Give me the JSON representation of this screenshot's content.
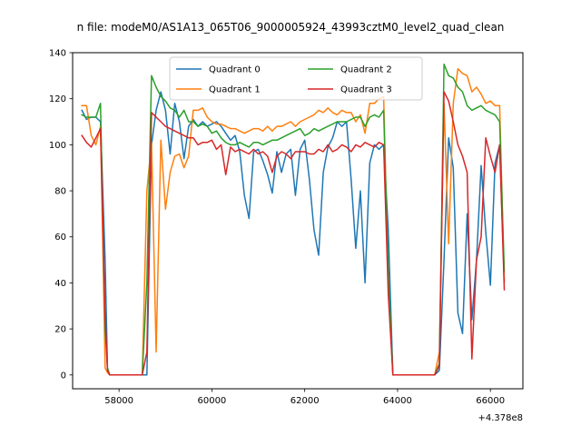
{
  "chart_data": {
    "type": "line",
    "title": "n file: modeM0/AS1A13_065T06_9000005924_43993cztM0_level2_quad_clean",
    "xlabel": "",
    "ylabel": "",
    "x_offset_label": "+4.378e8",
    "xlim": [
      57000,
      66700
    ],
    "ylim": [
      -6,
      140
    ],
    "xticks": [
      58000,
      60000,
      62000,
      64000,
      66000
    ],
    "xtick_labels": [
      "58000",
      "60000",
      "62000",
      "64000",
      "66000"
    ],
    "yticks": [
      0,
      20,
      40,
      60,
      80,
      100,
      120,
      140
    ],
    "ytick_labels": [
      "0",
      "20",
      "40",
      "60",
      "80",
      "100",
      "120",
      "140"
    ],
    "grid": false,
    "legend_position": "top-center",
    "legend_columns": 2,
    "series": [
      {
        "name": "Quadrant 0",
        "color": "#1f77b4",
        "x": [
          57200,
          57300,
          57400,
          57500,
          57600,
          57700,
          57750,
          57800,
          57900,
          58000,
          58100,
          58200,
          58300,
          58400,
          58500,
          58600,
          58700,
          58800,
          58900,
          59000,
          59100,
          59200,
          59300,
          59400,
          59500,
          59600,
          59700,
          59800,
          59900,
          60000,
          60100,
          60200,
          60300,
          60400,
          60500,
          60600,
          60700,
          60800,
          60900,
          61000,
          61100,
          61200,
          61300,
          61400,
          61500,
          61600,
          61700,
          61800,
          61900,
          62000,
          62100,
          62200,
          62300,
          62400,
          62500,
          62600,
          62700,
          62800,
          62900,
          63000,
          63100,
          63200,
          63300,
          63400,
          63500,
          63600,
          63700,
          63800,
          63900,
          64000,
          64100,
          64200,
          64300,
          64400,
          64500,
          64600,
          64700,
          64800,
          64900,
          65000,
          65100,
          65200,
          65300,
          65400,
          65500,
          65600,
          65700,
          65800,
          65900,
          66000,
          66100,
          66200,
          66300
        ],
        "y": [
          115,
          111,
          112,
          112,
          110,
          50,
          3,
          0,
          0,
          0,
          0,
          0,
          0,
          0,
          0,
          0,
          100,
          115,
          123,
          115,
          96,
          118,
          110,
          94,
          108,
          111,
          108,
          110,
          108,
          109,
          110,
          108,
          105,
          102,
          104,
          97,
          78,
          68,
          97,
          98,
          93,
          87,
          79,
          97,
          88,
          96,
          98,
          78,
          98,
          102,
          85,
          63,
          52,
          88,
          99,
          103,
          110,
          108,
          110,
          85,
          55,
          80,
          40,
          92,
          100,
          98,
          100,
          63,
          0,
          0,
          0,
          0,
          0,
          0,
          0,
          0,
          0,
          0,
          2,
          50,
          103,
          90,
          27,
          18,
          70,
          24,
          50,
          91,
          62,
          39,
          92,
          100,
          41
        ],
        "approximate": true
      },
      {
        "name": "Quadrant 1",
        "color": "#ff7f0e",
        "x": [
          57200,
          57300,
          57400,
          57500,
          57600,
          57700,
          57750,
          57800,
          57900,
          58000,
          58100,
          58200,
          58300,
          58400,
          58500,
          58600,
          58700,
          58800,
          58900,
          59000,
          59100,
          59200,
          59300,
          59400,
          59500,
          59600,
          59700,
          59800,
          59900,
          60000,
          60100,
          60200,
          60300,
          60400,
          60500,
          60600,
          60700,
          60800,
          60900,
          61000,
          61100,
          61200,
          61300,
          61400,
          61500,
          61600,
          61700,
          61800,
          61900,
          62000,
          62100,
          62200,
          62300,
          62400,
          62500,
          62600,
          62700,
          62800,
          62900,
          63000,
          63100,
          63200,
          63300,
          63400,
          63500,
          63600,
          63700,
          63800,
          63900,
          64000,
          64100,
          64200,
          64300,
          64400,
          64500,
          64600,
          64700,
          64800,
          64900,
          65000,
          65100,
          65200,
          65300,
          65400,
          65500,
          65600,
          65700,
          65800,
          65900,
          66000,
          66100,
          66200,
          66300
        ],
        "y": [
          117,
          117,
          104,
          100,
          108,
          3,
          1,
          0,
          0,
          0,
          0,
          0,
          0,
          0,
          0,
          80,
          101,
          10,
          102,
          72,
          88,
          95,
          96,
          90,
          95,
          115,
          115,
          116,
          112,
          110,
          109,
          109,
          108,
          107,
          107,
          106,
          105,
          106,
          107,
          107,
          106,
          108,
          106,
          108,
          108,
          109,
          110,
          108,
          110,
          111,
          112,
          113,
          115,
          114,
          116,
          114,
          113,
          115,
          114,
          114,
          110,
          113,
          105,
          118,
          118,
          120,
          121,
          40,
          0,
          0,
          0,
          0,
          0,
          0,
          0,
          0,
          0,
          0,
          10,
          118,
          57,
          118,
          133,
          131,
          130,
          123,
          125,
          122,
          118,
          119,
          117,
          117,
          40
        ],
        "approximate": true
      },
      {
        "name": "Quadrant 2",
        "color": "#2ca02c",
        "x": [
          57200,
          57300,
          57400,
          57500,
          57600,
          57700,
          57750,
          57800,
          57900,
          58000,
          58100,
          58200,
          58300,
          58400,
          58500,
          58600,
          58700,
          58800,
          58900,
          59000,
          59100,
          59200,
          59300,
          59400,
          59500,
          59600,
          59700,
          59800,
          59900,
          60000,
          60100,
          60200,
          60300,
          60400,
          60500,
          60600,
          60700,
          60800,
          60900,
          61000,
          61100,
          61200,
          61300,
          61400,
          61500,
          61600,
          61700,
          61800,
          61900,
          62000,
          62100,
          62200,
          62300,
          62400,
          62500,
          62600,
          62700,
          62800,
          62900,
          63000,
          63100,
          63200,
          63300,
          63400,
          63500,
          63600,
          63700,
          63800,
          63900,
          64000,
          64100,
          64200,
          64300,
          64400,
          64500,
          64600,
          64700,
          64800,
          64900,
          65000,
          65100,
          65200,
          65300,
          65400,
          65500,
          65600,
          65700,
          65800,
          65900,
          66000,
          66100,
          66200,
          66300
        ],
        "y": [
          113,
          112,
          112,
          112,
          118,
          20,
          3,
          0,
          0,
          0,
          0,
          0,
          0,
          0,
          0,
          40,
          130,
          125,
          121,
          119,
          116,
          115,
          112,
          115,
          110,
          110,
          108,
          109,
          108,
          105,
          106,
          103,
          101,
          100,
          100,
          101,
          100,
          99,
          101,
          101,
          100,
          101,
          102,
          102,
          103,
          104,
          105,
          106,
          107,
          104,
          105,
          107,
          106,
          107,
          108,
          109,
          110,
          110,
          110,
          111,
          112,
          112,
          108,
          112,
          113,
          112,
          115,
          45,
          0,
          0,
          0,
          0,
          0,
          0,
          0,
          0,
          0,
          0,
          5,
          135,
          130,
          129,
          125,
          123,
          117,
          115,
          116,
          117,
          115,
          114,
          113,
          110,
          45
        ],
        "approximate": true
      },
      {
        "name": "Quadrant 3",
        "color": "#d62728",
        "x": [
          57200,
          57300,
          57400,
          57500,
          57600,
          57700,
          57750,
          57800,
          57900,
          58000,
          58100,
          58200,
          58300,
          58400,
          58500,
          58600,
          58700,
          58800,
          58900,
          59000,
          59100,
          59200,
          59300,
          59400,
          59500,
          59600,
          59700,
          59800,
          59900,
          60000,
          60100,
          60200,
          60300,
          60400,
          60500,
          60600,
          60700,
          60800,
          60900,
          61000,
          61100,
          61200,
          61300,
          61400,
          61500,
          61600,
          61700,
          61800,
          61900,
          62000,
          62100,
          62200,
          62300,
          62400,
          62500,
          62600,
          62700,
          62800,
          62900,
          63000,
          63100,
          63200,
          63300,
          63400,
          63500,
          63600,
          63700,
          63800,
          63900,
          64000,
          64100,
          64200,
          64300,
          64400,
          64500,
          64600,
          64700,
          64800,
          64900,
          65000,
          65100,
          65200,
          65300,
          65400,
          65500,
          65600,
          65700,
          65800,
          65900,
          66000,
          66100,
          66200,
          66300
        ],
        "y": [
          104,
          101,
          99,
          103,
          107,
          25,
          2,
          0,
          0,
          0,
          0,
          0,
          0,
          0,
          0,
          10,
          114,
          112,
          110,
          108,
          107,
          106,
          105,
          104,
          103,
          103,
          100,
          101,
          101,
          102,
          98,
          100,
          87,
          99,
          97,
          98,
          97,
          96,
          98,
          96,
          97,
          95,
          88,
          95,
          97,
          96,
          94,
          97,
          97,
          97,
          96,
          96,
          98,
          97,
          100,
          97,
          98,
          100,
          99,
          97,
          100,
          99,
          101,
          100,
          99,
          101,
          100,
          35,
          0,
          0,
          0,
          0,
          0,
          0,
          0,
          0,
          0,
          0,
          4,
          123,
          119,
          110,
          100,
          95,
          88,
          7,
          50,
          60,
          103,
          95,
          88,
          100,
          37
        ],
        "approximate": true
      }
    ]
  }
}
